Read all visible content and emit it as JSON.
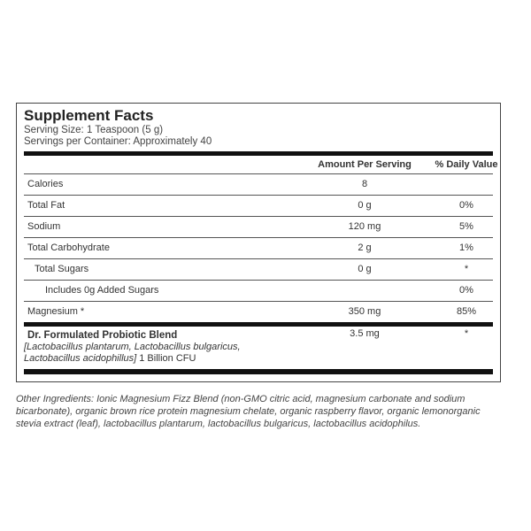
{
  "title": "Supplement Facts",
  "serving_size": "Serving Size: 1 Teaspoon (5 g)",
  "servings_per_container": "Servings per Container: Approximately 40",
  "headers": {
    "amount": "Amount Per Serving",
    "dv": "% Daily Value"
  },
  "rows": [
    {
      "name": "Calories",
      "amount": "8",
      "dv": ""
    },
    {
      "name": "Total Fat",
      "amount": "0 g",
      "dv": "0%"
    },
    {
      "name": "Sodium",
      "amount": "120 mg",
      "dv": "5%"
    },
    {
      "name": "Total Carbohydrate",
      "amount": "2 g",
      "dv": "1%"
    },
    {
      "name": "Total Sugars",
      "amount": "0 g",
      "dv": "*"
    },
    {
      "name": "Includes 0g Added Sugars",
      "amount": "",
      "dv": "0%"
    },
    {
      "name": "Magnesium *",
      "amount": "350 mg",
      "dv": "85%"
    }
  ],
  "blend": {
    "name": "Dr. Formulated Probiotic Blend",
    "ingredients_line1": "[Lactobacillus plantarum, Lactobacillus bulgaricus,",
    "ingredients_line2": "Lactobacillus acidophillus]",
    "cfu": " 1 Billion CFU",
    "amount": "3.5 mg",
    "dv": "*"
  },
  "other_ingredients": "Other Ingredients: Ionic Magnesium Fizz Blend (non-GMO citric acid, magnesium carbonate and sodium bicarbonate), organic brown rice protein magnesium chelate, organic raspberry flavor, organic lemonorganic stevia extract (leaf), lactobacillus plantarum, lactobacillus bulgaricus, lactobacillus acidophilus."
}
